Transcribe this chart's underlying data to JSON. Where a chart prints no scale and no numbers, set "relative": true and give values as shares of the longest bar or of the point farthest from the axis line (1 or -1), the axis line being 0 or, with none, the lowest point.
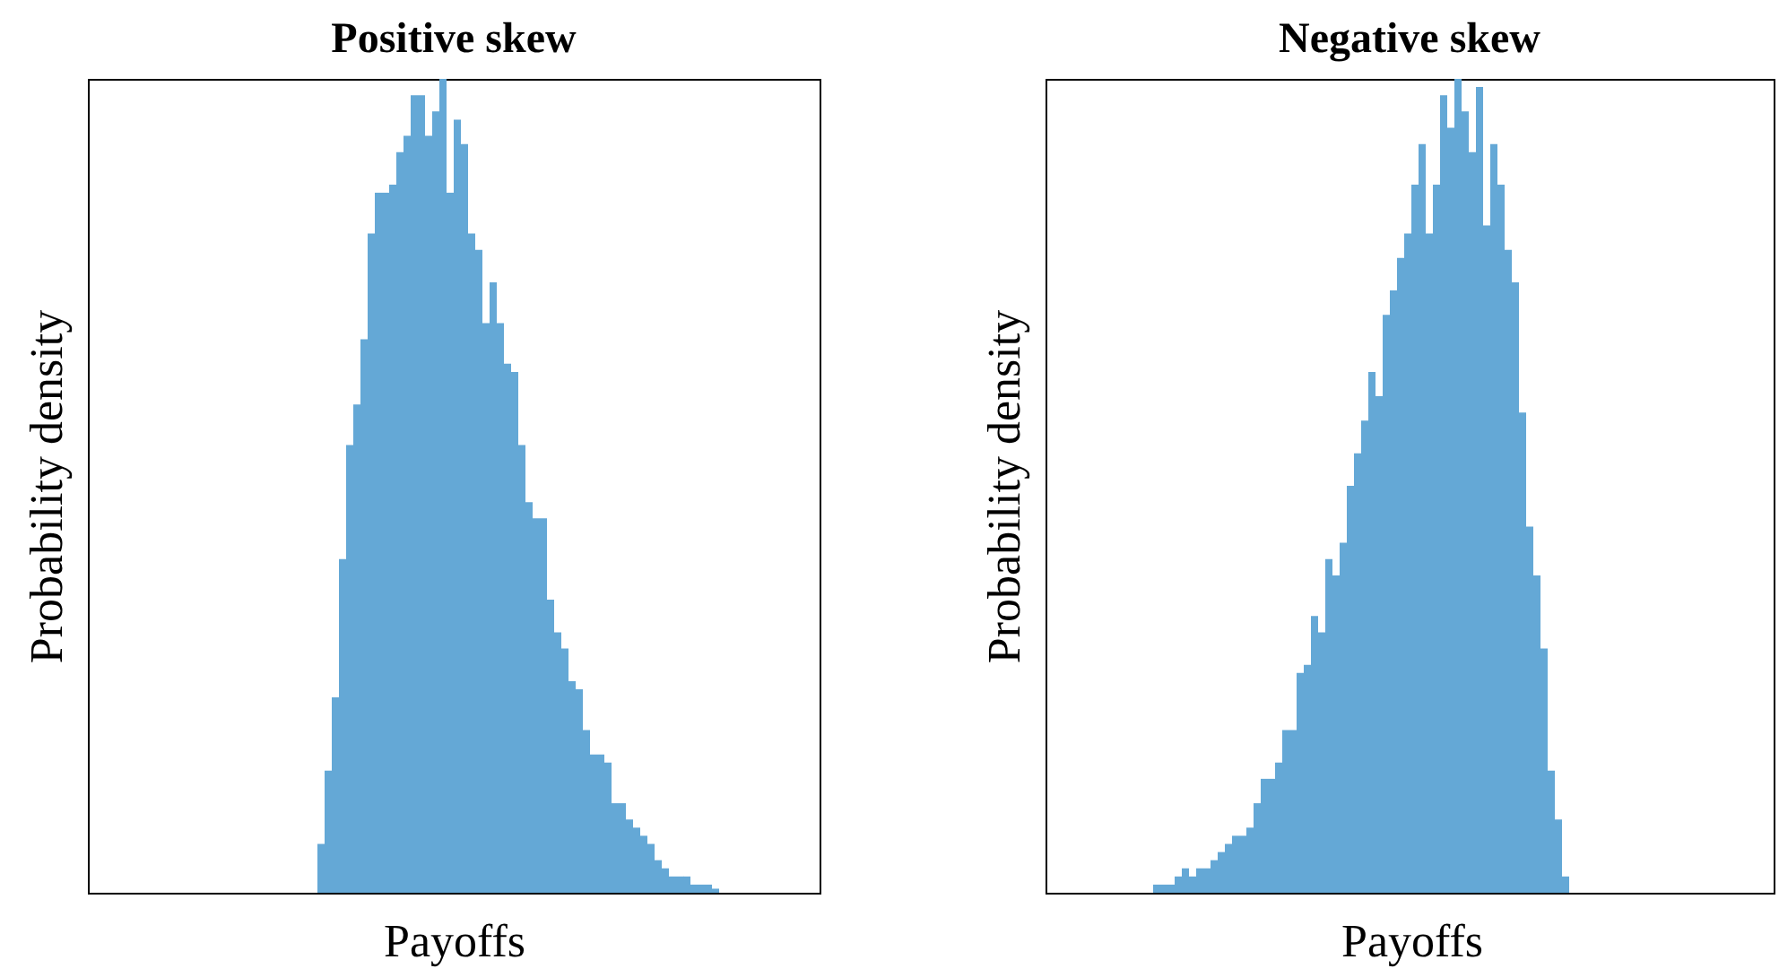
{
  "chart_data": [
    {
      "type": "bar",
      "title": "Positive skew",
      "xlabel": "Payoffs",
      "ylabel": "Probability density",
      "relative": true,
      "color": "#64a8d6",
      "categories": [
        null,
        null,
        null,
        null,
        null,
        null,
        null,
        null,
        null,
        null,
        null,
        null,
        null,
        null,
        null,
        null,
        null,
        null,
        null,
        null,
        null,
        null,
        null,
        null,
        null,
        null,
        null,
        null,
        null,
        null,
        null,
        null,
        null,
        null,
        null,
        null,
        null,
        null,
        null,
        null,
        null,
        null,
        null,
        null,
        null,
        null,
        null,
        null,
        null,
        null,
        null,
        null,
        null,
        null,
        null,
        null
      ],
      "values": [
        0.06,
        0.15,
        0.24,
        0.41,
        0.55,
        0.6,
        0.68,
        0.81,
        0.86,
        0.86,
        0.87,
        0.91,
        0.93,
        0.98,
        0.98,
        0.93,
        0.96,
        1,
        0.86,
        0.95,
        0.92,
        0.81,
        0.79,
        0.7,
        0.75,
        0.7,
        0.65,
        0.64,
        0.55,
        0.48,
        0.46,
        0.46,
        0.36,
        0.32,
        0.3,
        0.26,
        0.25,
        0.2,
        0.17,
        0.17,
        0.16,
        0.11,
        0.11,
        0.09,
        0.08,
        0.07,
        0.06,
        0.04,
        0.03,
        0.02,
        0.02,
        0.02,
        0.01,
        0.01,
        0.01,
        0.005
      ]
    },
    {
      "type": "bar",
      "title": "Negative skew",
      "xlabel": "Payoffs",
      "ylabel": "Probability density",
      "relative": true,
      "color": "#64a8d6",
      "categories": [
        null,
        null,
        null,
        null,
        null,
        null,
        null,
        null,
        null,
        null,
        null,
        null,
        null,
        null,
        null,
        null,
        null,
        null,
        null,
        null,
        null,
        null,
        null,
        null,
        null,
        null,
        null,
        null,
        null,
        null,
        null,
        null,
        null,
        null,
        null,
        null,
        null,
        null,
        null,
        null,
        null,
        null,
        null,
        null,
        null,
        null,
        null,
        null,
        null,
        null,
        null,
        null,
        null,
        null,
        null,
        null,
        null,
        null
      ],
      "values": [
        0.01,
        0.01,
        0.01,
        0.02,
        0.03,
        0.02,
        0.03,
        0.03,
        0.04,
        0.05,
        0.06,
        0.07,
        0.07,
        0.08,
        0.11,
        0.14,
        0.14,
        0.16,
        0.2,
        0.2,
        0.27,
        0.28,
        0.34,
        0.32,
        0.41,
        0.39,
        0.43,
        0.5,
        0.54,
        0.58,
        0.64,
        0.61,
        0.71,
        0.74,
        0.78,
        0.81,
        0.87,
        0.92,
        0.81,
        0.87,
        0.98,
        0.94,
        1,
        0.96,
        0.91,
        0.99,
        0.82,
        0.92,
        0.87,
        0.79,
        0.75,
        0.59,
        0.45,
        0.39,
        0.3,
        0.15,
        0.09,
        0.02
      ]
    }
  ]
}
